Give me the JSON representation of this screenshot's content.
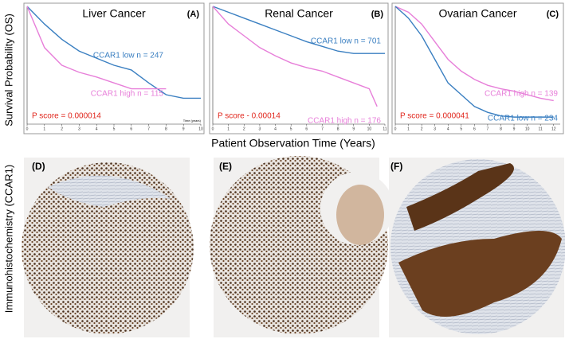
{
  "figure": {
    "y_label": "Survival Probability (OS)",
    "x_label": "Patient Observation Time (Years)",
    "ihc_label": "Immunohistochemistry (CCAR1)",
    "panels": [
      "(D)",
      "(E)",
      "(F)"
    ]
  },
  "chart_data": [
    {
      "type": "line",
      "title": "Liver Cancer",
      "panel": "(A)",
      "annotation": "P score = 0.000014",
      "x_axis_label": "Time (years)",
      "xlim": [
        0,
        10
      ],
      "ylim": [
        0,
        1
      ],
      "xticks": [
        0,
        1,
        2,
        3,
        4,
        5,
        6,
        7,
        8,
        9,
        10
      ],
      "series": [
        {
          "name": "CCAR1 low n = 247",
          "color": "#3a7fc1",
          "x": [
            0,
            1,
            2,
            3,
            4,
            5,
            6,
            7,
            8,
            9,
            10
          ],
          "values": [
            1,
            0.85,
            0.72,
            0.62,
            0.56,
            0.5,
            0.46,
            0.35,
            0.25,
            0.22,
            0.22
          ]
        },
        {
          "name": "CCAR1 high n = 115",
          "color": "#e77fd9",
          "x": [
            0,
            1,
            2,
            3,
            4,
            5,
            6,
            7,
            8
          ],
          "values": [
            1,
            0.65,
            0.5,
            0.44,
            0.4,
            0.35,
            0.3,
            0.3,
            0.3
          ]
        }
      ]
    },
    {
      "type": "line",
      "title": "Renal Cancer",
      "panel": "(B)",
      "annotation": "P score - 0.00014",
      "xlim": [
        0,
        11
      ],
      "ylim": [
        0,
        1
      ],
      "xticks": [
        0,
        1,
        2,
        3,
        4,
        5,
        6,
        7,
        8,
        9,
        10,
        11
      ],
      "series": [
        {
          "name": "CCAR1 low n = 701",
          "color": "#3a7fc1",
          "x": [
            0,
            1,
            2,
            3,
            4,
            5,
            6,
            7,
            8,
            9,
            10,
            11
          ],
          "values": [
            1,
            0.95,
            0.9,
            0.85,
            0.8,
            0.75,
            0.7,
            0.66,
            0.62,
            0.6,
            0.6,
            0.6
          ]
        },
        {
          "name": "CCAR1 high n = 176",
          "color": "#e77fd9",
          "x": [
            0,
            1,
            2,
            3,
            4,
            5,
            6,
            7,
            8,
            9,
            10,
            10.5
          ],
          "values": [
            1,
            0.85,
            0.75,
            0.65,
            0.58,
            0.52,
            0.48,
            0.45,
            0.4,
            0.35,
            0.3,
            0.15
          ]
        }
      ]
    },
    {
      "type": "line",
      "title": "Ovarian Cancer",
      "panel": "(C)",
      "annotation": "P score = 0.000041",
      "xlim": [
        0,
        12.5
      ],
      "ylim": [
        0,
        1
      ],
      "xticks": [
        0,
        1,
        2,
        3,
        4,
        5,
        6,
        7,
        8,
        9,
        10,
        11,
        12
      ],
      "series": [
        {
          "name": "CCAR1 high n = 139",
          "color": "#e77fd9",
          "x": [
            0,
            1,
            2,
            3,
            4,
            5,
            6,
            7,
            8,
            9,
            10,
            11,
            12
          ],
          "values": [
            1,
            0.95,
            0.85,
            0.7,
            0.55,
            0.45,
            0.38,
            0.33,
            0.3,
            0.28,
            0.25,
            0.22,
            0.2
          ]
        },
        {
          "name": "CCAR1 low n = 234",
          "color": "#3a7fc1",
          "x": [
            0,
            1,
            2,
            3,
            4,
            5,
            6,
            7,
            8,
            9,
            12
          ],
          "values": [
            1,
            0.9,
            0.75,
            0.55,
            0.35,
            0.25,
            0.15,
            0.1,
            0.07,
            0.06,
            0.06
          ]
        }
      ]
    }
  ]
}
